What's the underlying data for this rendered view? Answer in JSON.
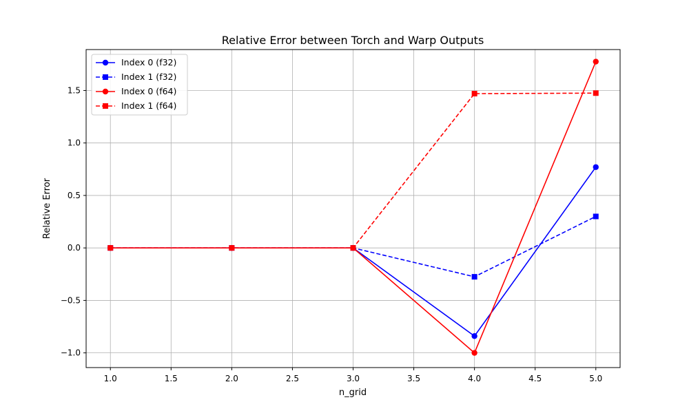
{
  "chart_data": {
    "type": "line",
    "title": "Relative Error between Torch and Warp Outputs",
    "xlabel": "n_grid",
    "ylabel": "Relative Error",
    "xlim": [
      0.8,
      5.2
    ],
    "ylim": [
      -1.14,
      1.89
    ],
    "xticks": [
      1.0,
      1.5,
      2.0,
      2.5,
      3.0,
      3.5,
      4.0,
      4.5,
      5.0
    ],
    "xtick_labels": [
      "1.0",
      "1.5",
      "2.0",
      "2.5",
      "3.0",
      "3.5",
      "4.0",
      "4.5",
      "5.0"
    ],
    "yticks": [
      -1.0,
      -0.5,
      0.0,
      0.5,
      1.0,
      1.5
    ],
    "ytick_labels": [
      "−1.0",
      "−0.5",
      "0.0",
      "0.5",
      "1.0",
      "1.5"
    ],
    "grid": true,
    "legend_position": "top-left",
    "x": [
      1,
      2,
      3,
      4,
      5
    ],
    "series": [
      {
        "name": "Index 0 (f32)",
        "values": [
          0.0,
          0.0,
          0.0,
          -0.84,
          0.77
        ],
        "color": "#0000ff",
        "dash": "solid",
        "marker": "circle"
      },
      {
        "name": "Index 1 (f32)",
        "values": [
          0.0,
          0.0,
          0.0,
          -0.275,
          0.3
        ],
        "color": "#0000ff",
        "dash": "dashed",
        "marker": "square"
      },
      {
        "name": "Index 0 (f64)",
        "values": [
          0.0,
          0.0,
          0.0,
          -1.0,
          1.775
        ],
        "color": "#ff0000",
        "dash": "solid",
        "marker": "circle"
      },
      {
        "name": "Index 1 (f64)",
        "values": [
          0.0,
          0.0,
          0.0,
          1.47,
          1.475
        ],
        "color": "#ff0000",
        "dash": "dashed",
        "marker": "square"
      }
    ]
  }
}
